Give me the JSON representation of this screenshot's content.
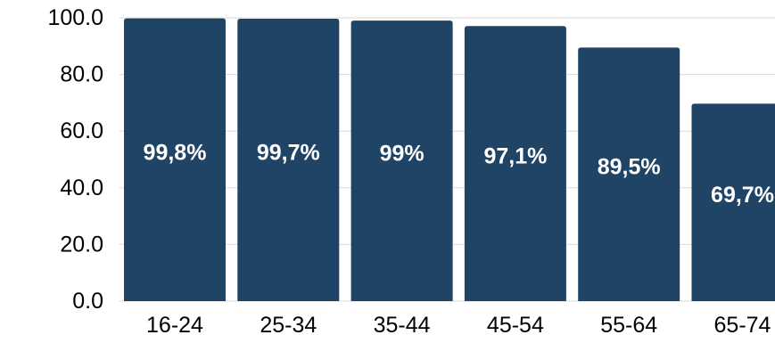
{
  "chart_data": {
    "type": "bar",
    "title": "",
    "xlabel": "",
    "ylabel": "",
    "categories": [
      "16-24",
      "25-34",
      "35-44",
      "45-54",
      "55-64",
      "65-74"
    ],
    "values": [
      99.8,
      99.7,
      99.0,
      97.1,
      89.5,
      69.7
    ],
    "data_labels": [
      "99,8%",
      "99,7%",
      "99%",
      "97,1%",
      "89,5%",
      "69,7%"
    ],
    "ylim": [
      0,
      100
    ],
    "yticks": [
      "0.0",
      "20.0",
      "40.0",
      "60.0",
      "80.0",
      "100.0"
    ],
    "grid": true,
    "legend": "none",
    "bar_color": "#1f4466",
    "label_color": "#ffffff",
    "gridline_color": "#d9d9d9"
  }
}
